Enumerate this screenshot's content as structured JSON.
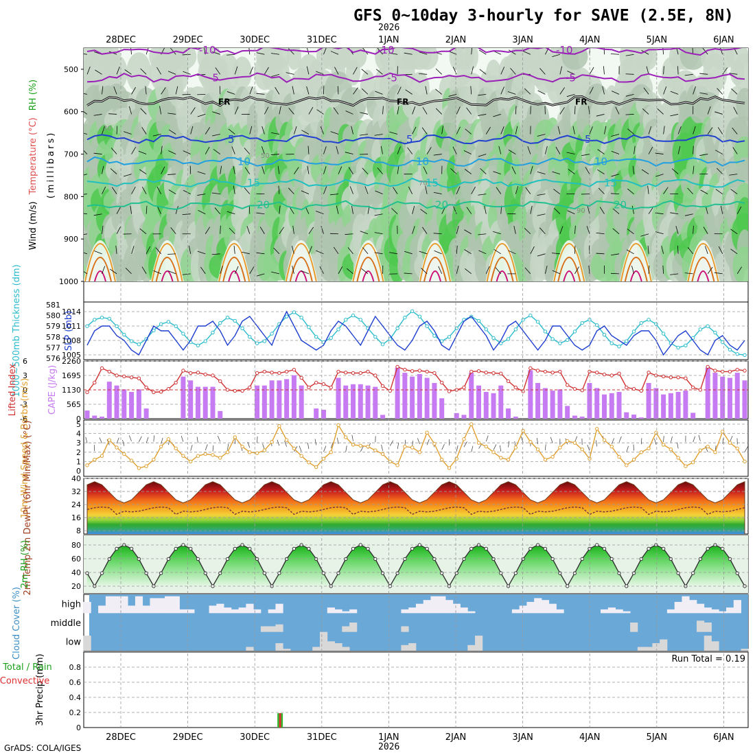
{
  "title": "GFS 0~10day 3-hourly for SAVE (2.5E, 8N)",
  "year_label": "2026",
  "credit": "GrADS: COLA/IGES",
  "dates": [
    "28DEC",
    "29DEC",
    "30DEC",
    "31DEC",
    "1JAN",
    "2JAN",
    "3JAN",
    "4JAN",
    "5JAN",
    "6JAN"
  ],
  "colors": {
    "rh_green": "#33cc33",
    "temp_label": "#e05050",
    "slp_line": "#1f3fd0",
    "thickness_line": "#2bbccc",
    "lifted_index": "#d03030",
    "cape_bar": "#c67bf2",
    "wind_speed": "#e0a030",
    "cloud_sky": "#6aa8d8",
    "cloud_fill": "#d8d8d8",
    "precip_total": "#33bb33",
    "precip_conv": "#e03030"
  },
  "chart_data": [
    {
      "type": "heatmap",
      "panel": "upper-air",
      "ylabel_parts": [
        "Wind (m/s)",
        "Temperature (°C)",
        "RH (%)"
      ],
      "ylabel_units": "(millibars)",
      "ylim": [
        1000,
        450
      ],
      "y_ticks": [
        500,
        600,
        700,
        800,
        900,
        1000
      ],
      "temperature_contours": [
        {
          "label": "-10",
          "level_mb": 455,
          "color": "#9b1fb8"
        },
        {
          "label": "-5",
          "level_mb": 520,
          "color": "#9b1fb8"
        },
        {
          "label": "FR",
          "level_mb": 575,
          "color": "#000000"
        },
        {
          "label": "5",
          "level_mb": 665,
          "color": "#2040d0"
        },
        {
          "label": "10",
          "level_mb": 718,
          "color": "#20a0e0"
        },
        {
          "label": "15",
          "level_mb": 768,
          "color": "#20c0c0"
        },
        {
          "label": "20",
          "level_mb": 820,
          "color": "#20c090"
        }
      ],
      "rh_labels": [
        "30",
        "50",
        "70",
        "90"
      ]
    },
    {
      "type": "line",
      "panel": "slp-thickness",
      "ylabel_left": "1000~500mb Thickness (dm)",
      "ylabel_right": "SLP (mb)",
      "thickness_ticks": [
        576,
        577,
        578,
        579,
        580,
        581
      ],
      "slp_ticks": [
        1005,
        1008,
        1011,
        1014
      ],
      "series": [
        {
          "name": "SLP (mb)",
          "values": [
            1007,
            1010,
            1011,
            1011,
            1009,
            1008,
            1006,
            1005,
            1008,
            1011,
            1010,
            1010,
            1008,
            1006,
            1008,
            1011,
            1011,
            1012,
            1010,
            1007,
            1009,
            1012,
            1013,
            1011,
            1009,
            1007,
            1011,
            1014,
            1011,
            1008,
            1007,
            1006,
            1007,
            1010,
            1012,
            1011,
            1009,
            1007,
            1010,
            1013,
            1011,
            1009,
            1007,
            1006,
            1008,
            1011,
            1012,
            1010,
            1007,
            1006,
            1009,
            1012,
            1013,
            1011,
            1009,
            1006,
            1008,
            1011,
            1012,
            1010,
            1008,
            1006,
            1008,
            1011,
            1011,
            1009,
            1007,
            1006,
            1007,
            1010,
            1011,
            1009,
            1008,
            1007,
            1009,
            1010,
            1010,
            1008,
            1005,
            1007,
            1009,
            1010,
            1008,
            1006,
            1005,
            1008,
            1009,
            1007,
            1006,
            1008
          ]
        },
        {
          "name": "1000~500mb Thickness (dm)",
          "values": [
            579.0,
            579.6,
            579.8,
            579.7,
            579.0,
            578.2,
            577.6,
            577.3,
            577.8,
            578.6,
            579.2,
            579.4,
            579.0,
            578.3,
            577.5,
            577.2,
            577.6,
            578.4,
            579.3,
            579.8,
            579.5,
            578.8,
            578.0,
            577.4,
            577.6,
            578.3,
            579.2,
            579.9,
            580.3,
            579.8,
            578.9,
            578.0,
            577.5,
            577.9,
            578.7,
            579.6,
            580.0,
            579.6,
            578.8,
            578.0,
            577.3,
            577.8,
            578.8,
            579.8,
            580.4,
            579.9,
            579.0,
            578.1,
            577.6,
            578.0,
            578.8,
            579.6,
            579.9,
            579.5,
            578.7,
            577.9,
            577.4,
            577.8,
            578.7,
            579.6,
            580.0,
            579.4,
            578.5,
            577.8,
            577.4,
            577.7,
            578.5,
            579.3,
            579.6,
            579.1,
            578.2,
            577.4,
            577.1,
            577.6,
            578.5,
            579.3,
            579.6,
            579.2,
            578.3,
            577.4,
            577.0,
            577.2,
            577.9,
            578.7,
            579.0,
            578.4,
            577.5,
            576.8,
            576.4,
            576.3
          ]
        }
      ]
    },
    {
      "type": "bar",
      "panel": "cape-li",
      "ylabel_left": "Lifted Index",
      "ylabel_right": "CAPE (J/kg)",
      "li_ticks": [
        "6",
        "3",
        "0",
        "-3",
        "-6"
      ],
      "cape_ticks": [
        0,
        565,
        1130,
        1695,
        2260
      ],
      "series": [
        {
          "name": "CAPE (J/kg)",
          "values": [
            320,
            120,
            80,
            1450,
            1300,
            1150,
            1050,
            1150,
            400,
            0,
            0,
            0,
            0,
            1650,
            1500,
            1250,
            1250,
            1250,
            300,
            0,
            0,
            0,
            0,
            1300,
            1300,
            1500,
            1500,
            1550,
            1700,
            1300,
            0,
            400,
            350,
            0,
            1600,
            1300,
            1350,
            1350,
            1300,
            1250,
            150,
            0,
            2000,
            1800,
            1650,
            1750,
            1600,
            1400,
            800,
            0,
            220,
            150,
            1800,
            1300,
            1050,
            1000,
            1300,
            400,
            80,
            0,
            1900,
            1400,
            1200,
            1100,
            1150,
            500,
            120,
            80,
            1400,
            1200,
            950,
            1000,
            1050,
            250,
            160,
            50,
            1400,
            1200,
            950,
            1000,
            1050,
            1100,
            230,
            0,
            2000,
            1800,
            1650,
            1600,
            1800,
            1500
          ]
        },
        {
          "name": "Lifted Index",
          "values": [
            0.5,
            -1.5,
            -4.5,
            -3.8,
            -3.0,
            -2.8,
            -2.6,
            -2.4,
            -0.5,
            0.5,
            0.4,
            -0.2,
            -1.5,
            -4.0,
            -3.5,
            -3.6,
            -3.2,
            -3.0,
            -1.8,
            0.0,
            0.2,
            0.2,
            -0.5,
            -3.5,
            -3.8,
            -3.6,
            -3.5,
            -3.8,
            -4.2,
            -2.5,
            -0.5,
            -1.5,
            -1.2,
            -0.5,
            -3.8,
            -3.6,
            -3.5,
            -3.5,
            -3.8,
            -3.0,
            -0.8,
            0.2,
            -4.8,
            -4.2,
            -3.9,
            -4.0,
            -3.8,
            -3.5,
            -1.5,
            0.3,
            0.0,
            -0.5,
            -3.8,
            -3.9,
            -3.6,
            -3.5,
            -3.4,
            -1.8,
            -0.5,
            0.3,
            -4.5,
            -4.0,
            -3.8,
            -3.6,
            -3.8,
            -1.0,
            -0.2,
            0.1,
            -3.8,
            -3.6,
            -3.2,
            -3.0,
            -3.4,
            -0.5,
            -0.2,
            0.2,
            -3.6,
            -3.0,
            -2.8,
            -2.6,
            -2.6,
            -2.4,
            -0.5,
            0.0,
            -4.8,
            -4.0,
            -3.8,
            -3.8,
            -4.2,
            -4.0
          ]
        }
      ]
    },
    {
      "type": "line",
      "panel": "wind10m",
      "ylabel": "10m Wind Speed & Barbs (m/s)",
      "ylim": [
        0,
        5
      ],
      "series": [
        {
          "name": "10m Wind Speed (m/s)",
          "values": [
            0.6,
            1.2,
            1.6,
            3.3,
            2.5,
            1.8,
            1.1,
            0.3,
            0.5,
            1.2,
            2.6,
            3.4,
            2.4,
            1.6,
            1.0,
            1.6,
            1.8,
            1.7,
            1.4,
            2.0,
            3.6,
            2.6,
            2.0,
            1.9,
            2.2,
            3.1,
            4.8,
            3.3,
            2.4,
            1.6,
            0.9,
            0.4,
            1.3,
            2.0,
            4.9,
            3.6,
            2.8,
            2.7,
            2.6,
            2.2,
            1.8,
            1.0,
            0.6,
            2.6,
            2.5,
            2.0,
            4.1,
            2.9,
            1.2,
            0.3,
            1.3,
            3.4,
            5.0,
            3.0,
            2.6,
            2.0,
            1.4,
            1.2,
            2.5,
            4.3,
            3.1,
            2.3,
            1.2,
            1.5,
            2.5,
            3.2,
            3.0,
            2.3,
            1.3,
            4.5,
            3.3,
            2.6,
            1.5,
            0.6,
            1.2,
            2.0,
            2.4,
            4.1,
            2.8,
            2.3,
            1.4,
            0.5,
            0.9,
            2.2,
            2.6,
            2.0,
            4.2,
            3.0,
            2.4,
            1.0
          ]
        }
      ]
    },
    {
      "type": "area",
      "panel": "temp2m",
      "ylabel": "2m Temp 2m DewPt (6hr Min/Max) (°C)",
      "ylim": [
        8,
        40
      ],
      "y_ticks": [
        8,
        16,
        24,
        32,
        40
      ],
      "series": [
        {
          "name": "2m Temp",
          "daily_min": 25,
          "daily_max": 38
        },
        {
          "name": "2m DewPt",
          "typical": 21
        }
      ]
    },
    {
      "type": "area",
      "panel": "rh2m",
      "ylabel": "2m RH (%)",
      "ylim": [
        10,
        90
      ],
      "y_ticks": [
        20,
        40,
        60,
        80
      ],
      "series": [
        {
          "name": "2m RH",
          "daily_min": 20,
          "daily_max": 80
        }
      ]
    },
    {
      "type": "bar",
      "panel": "cloud",
      "ylabel": "Cloud Cover (%)",
      "levels": [
        "high",
        "middle",
        "low"
      ],
      "series": [
        {
          "name": "high",
          "values": [
            60,
            0,
            40,
            90,
            90,
            90,
            40,
            90,
            40,
            80,
            80,
            90,
            90,
            20,
            20,
            0,
            0,
            40,
            50,
            30,
            20,
            30,
            50,
            20,
            0,
            20,
            50,
            0,
            0,
            0,
            0,
            0,
            0,
            30,
            20,
            10,
            20,
            0,
            0,
            0,
            0,
            0,
            0,
            20,
            30,
            50,
            70,
            90,
            90,
            70,
            50,
            30,
            10,
            0,
            0,
            0,
            0,
            0,
            20,
            40,
            60,
            80,
            70,
            50,
            20,
            0,
            0,
            0,
            0,
            0,
            20,
            30,
            20,
            10,
            0,
            0,
            0,
            0,
            0,
            20,
            60,
            90,
            70,
            50,
            30,
            20,
            10,
            30,
            70,
            0
          ]
        },
        {
          "name": "middle",
          "values": [
            0,
            0,
            0,
            0,
            0,
            0,
            0,
            0,
            0,
            0,
            0,
            0,
            0,
            0,
            0,
            0,
            0,
            0,
            0,
            0,
            0,
            0,
            0,
            0,
            30,
            30,
            40,
            0,
            0,
            0,
            0,
            0,
            0,
            0,
            0,
            30,
            50,
            0,
            0,
            0,
            0,
            0,
            0,
            30,
            0,
            0,
            0,
            0,
            0,
            0,
            0,
            0,
            0,
            0,
            0,
            0,
            0,
            0,
            0,
            0,
            0,
            0,
            0,
            0,
            0,
            0,
            0,
            0,
            0,
            0,
            0,
            0,
            0,
            0,
            50,
            0,
            0,
            0,
            0,
            0,
            0,
            0,
            0,
            60,
            50,
            0,
            0,
            0,
            0,
            0
          ]
        },
        {
          "name": "low",
          "values": [
            80,
            0,
            0,
            0,
            0,
            0,
            0,
            0,
            0,
            0,
            0,
            0,
            0,
            0,
            0,
            0,
            0,
            0,
            0,
            0,
            0,
            0,
            20,
            0,
            0,
            0,
            40,
            10,
            0,
            0,
            0,
            20,
            100,
            50,
            40,
            20,
            0,
            0,
            0,
            0,
            0,
            0,
            0,
            30,
            40,
            0,
            0,
            0,
            0,
            0,
            0,
            0,
            30,
            80,
            0,
            0,
            0,
            0,
            0,
            0,
            0,
            0,
            0,
            0,
            0,
            0,
            0,
            0,
            0,
            0,
            0,
            0,
            0,
            0,
            0,
            20,
            20,
            40,
            60,
            0,
            0,
            0,
            0,
            0,
            80,
            50,
            0,
            0,
            0,
            10
          ]
        }
      ]
    },
    {
      "type": "bar",
      "panel": "precip",
      "ylabel": "3hr Precip (mm)",
      "legend": [
        "Total / Rain",
        "Convective"
      ],
      "annotation": "Run Total = 0.19",
      "ylim": [
        0,
        1.0
      ],
      "y_ticks": [
        "0",
        "0.2",
        "0.4",
        "0.6",
        "0.8"
      ],
      "bars": [
        {
          "index": 25,
          "total": 0.19,
          "convective": 0.19
        }
      ]
    }
  ]
}
